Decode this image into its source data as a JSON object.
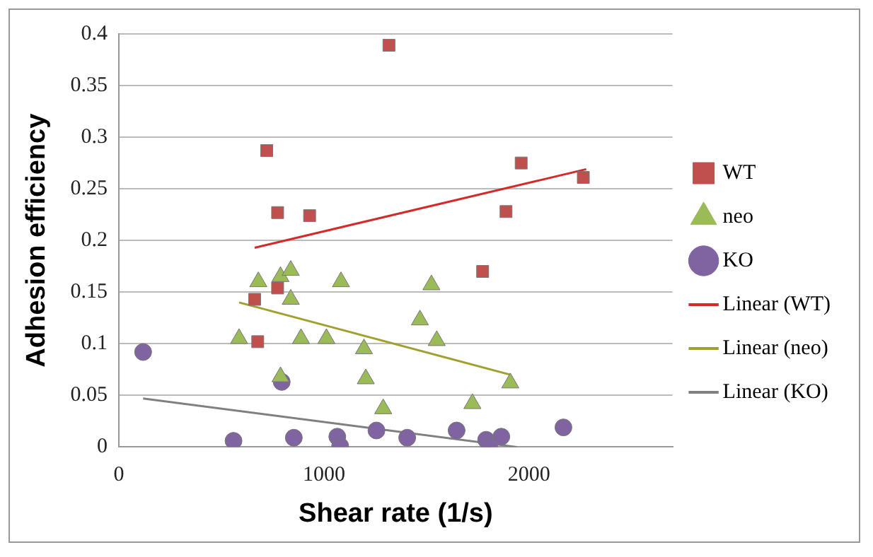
{
  "chart_data": {
    "type": "scatter",
    "xlabel": "Shear rate (1/s)",
    "ylabel": "Adhesion efficiency",
    "xlim": [
      0,
      2700
    ],
    "xticks": [
      0,
      1000,
      2000
    ],
    "ylim": [
      0,
      0.4
    ],
    "yticks": [
      0,
      0.05,
      0.1,
      0.15,
      0.2,
      0.25,
      0.3,
      0.35,
      0.4
    ],
    "grid": "y",
    "legend": "right",
    "series": [
      {
        "name": "WT",
        "type": "scatter",
        "marker": "square",
        "color": "#c0504d",
        "x": [
          1317,
          721,
          774,
          930,
          1962,
          2265,
          1888,
          1774,
          774,
          662,
          677
        ],
        "values": [
          0.389,
          0.287,
          0.227,
          0.224,
          0.275,
          0.261,
          0.228,
          0.17,
          0.154,
          0.143,
          0.102
        ]
      },
      {
        "name": "neo",
        "type": "scatter",
        "marker": "triangle",
        "color": "#9bbb59",
        "x": [
          680,
          586,
          788,
          838,
          838,
          888,
          1012,
          1083,
          1195,
          1204,
          1289,
          1468,
          1524,
          1550,
          1724,
          1909,
          788
        ],
        "values": [
          0.16,
          0.105,
          0.165,
          0.171,
          0.143,
          0.105,
          0.105,
          0.16,
          0.095,
          0.066,
          0.037,
          0.123,
          0.157,
          0.103,
          0.042,
          0.062,
          0.068
        ]
      },
      {
        "name": "KO",
        "type": "scatter",
        "marker": "circle",
        "color": "#8064a2",
        "x": [
          118,
          794,
          559,
          853,
          1065,
          1079,
          1256,
          1406,
          1647,
          1791,
          1806,
          1865,
          2168
        ],
        "values": [
          0.092,
          0.063,
          0.006,
          0.009,
          0.01,
          0.001,
          0.016,
          0.009,
          0.016,
          0.007,
          0.001,
          0.01,
          0.019
        ]
      },
      {
        "name": "Linear (WT)",
        "type": "line",
        "marker": "none",
        "color": "#d42a2a",
        "x": [
          662,
          2279
        ],
        "values": [
          0.193,
          0.269
        ]
      },
      {
        "name": "Linear (neo)",
        "type": "line",
        "marker": "none",
        "color": "#a0a030",
        "x": [
          586,
          1909
        ],
        "values": [
          0.14,
          0.07
        ]
      },
      {
        "name": "Linear (KO)",
        "type": "line",
        "marker": "none",
        "color": "#808080",
        "x": [
          118,
          1941
        ],
        "values": [
          0.047,
          0
        ]
      }
    ]
  }
}
